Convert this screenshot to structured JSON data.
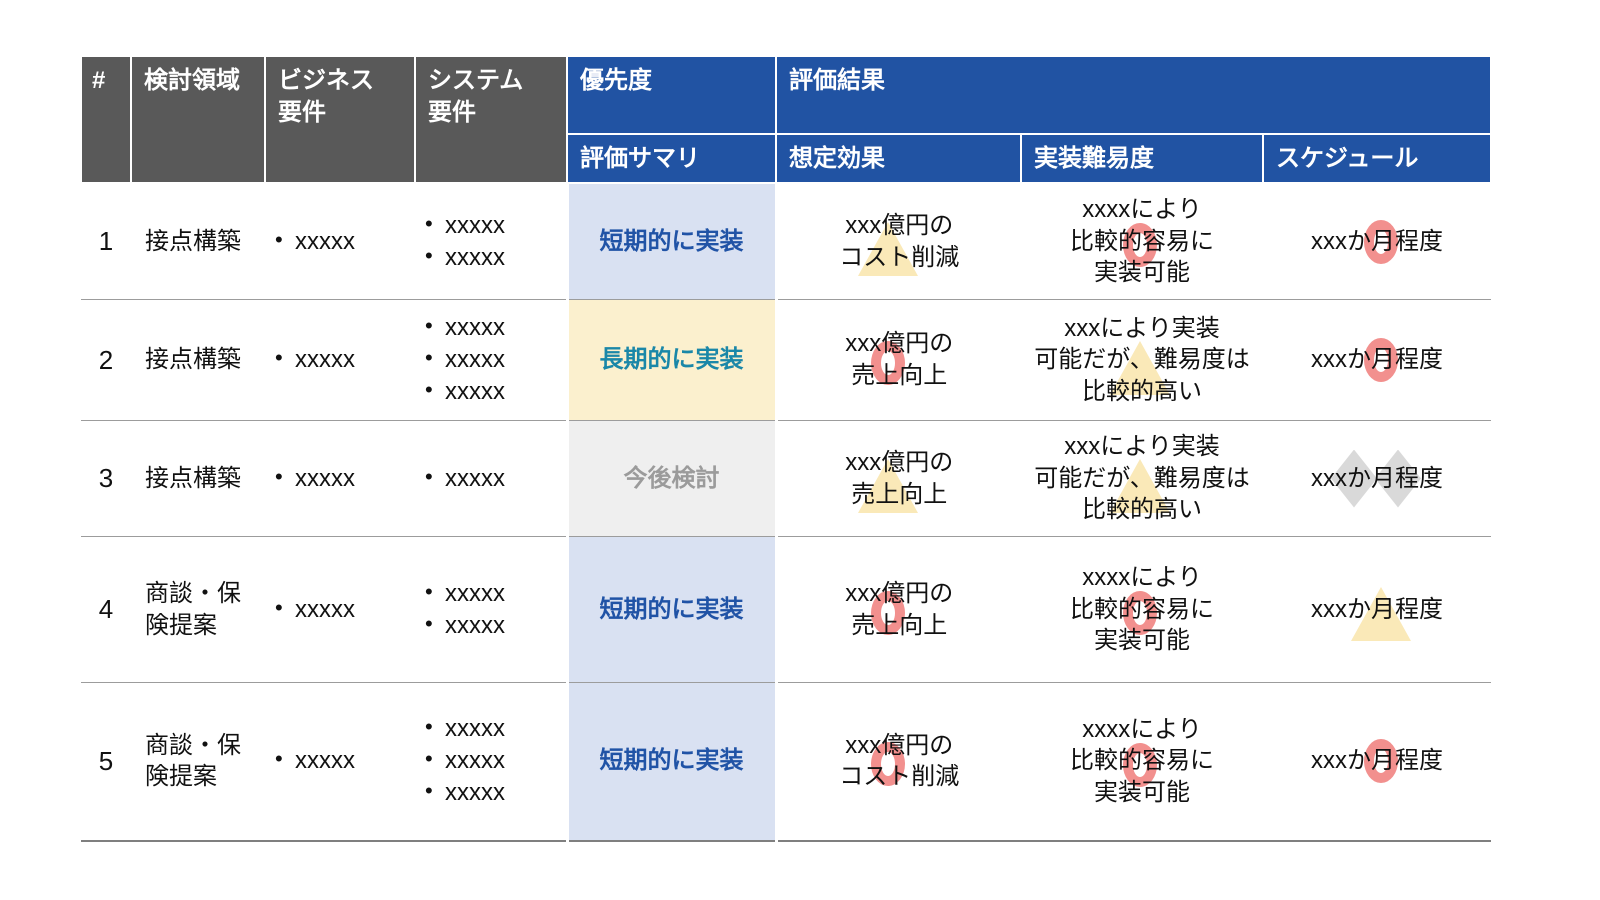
{
  "table": {
    "header": {
      "col_number": "#",
      "col_area": "検討領域",
      "col_business": "ビジネス\n要件",
      "col_system": "システム\n要件",
      "col_priority": "優先度",
      "col_priority_sub": "評価サマリ",
      "col_result": "評価結果",
      "col_effect": "想定効果",
      "col_difficulty": "実装難易度",
      "col_schedule": "スケジュール"
    },
    "rows": [
      {
        "no": "1",
        "area": "接点構築",
        "business": [
          "xxxxx"
        ],
        "system": [
          "xxxxx",
          "xxxxx"
        ],
        "priority": {
          "label": "短期的に実装",
          "type": "short"
        },
        "effect": {
          "text": "xxx億円の\nコスト削減",
          "mark": "triangle"
        },
        "difficulty": {
          "text": "xxxxにより\n比較的容易に\n実装可能",
          "mark": "circle"
        },
        "schedule": {
          "text": "xxxか月程度",
          "mark": "circle"
        }
      },
      {
        "no": "2",
        "area": "接点構築",
        "business": [
          "xxxxx"
        ],
        "system": [
          "xxxxx",
          "xxxxx",
          "xxxxx"
        ],
        "priority": {
          "label": "長期的に実装",
          "type": "long"
        },
        "effect": {
          "text": "xxx億円の\n売上向上",
          "mark": "circle"
        },
        "difficulty": {
          "text": "xxxにより実装\n可能だが、難易度は\n比較的高い",
          "mark": "triangle"
        },
        "schedule": {
          "text": "xxxか月程度",
          "mark": "circle"
        }
      },
      {
        "no": "3",
        "area": "接点構築",
        "business": [
          "xxxxx"
        ],
        "system": [
          "xxxxx"
        ],
        "priority": {
          "label": "今後検討",
          "type": "later"
        },
        "effect": {
          "text": "xxx億円の\n売上向上",
          "mark": "triangle"
        },
        "difficulty": {
          "text": "xxxにより実装\n可能だが、難易度は\n比較的高い",
          "mark": "triangle"
        },
        "schedule": {
          "text": "xxxか月程度",
          "mark": "cross"
        }
      },
      {
        "no": "4",
        "area": "商談・保険提案",
        "business": [
          "xxxxx"
        ],
        "system": [
          "xxxxx",
          "xxxxx"
        ],
        "priority": {
          "label": "短期的に実装",
          "type": "short"
        },
        "effect": {
          "text": "xxx億円の\n売上向上",
          "mark": "circle"
        },
        "difficulty": {
          "text": "xxxxにより\n比較的容易に\n実装可能",
          "mark": "circle"
        },
        "schedule": {
          "text": "xxxか月程度",
          "mark": "triangle"
        }
      },
      {
        "no": "5",
        "area": "商談・保険提案",
        "business": [
          "xxxxx"
        ],
        "system": [
          "xxxxx",
          "xxxxx",
          "xxxxx"
        ],
        "priority": {
          "label": "短期的に実装",
          "type": "short"
        },
        "effect": {
          "text": "xxx億円の\nコスト削減",
          "mark": "circle"
        },
        "difficulty": {
          "text": "xxxxにより\n比較的容易に\n実装可能",
          "mark": "circle"
        },
        "schedule": {
          "text": "xxxか月程度",
          "mark": "circle"
        }
      }
    ]
  },
  "colors": {
    "header_dark": "#595959",
    "header_blue": "#2153A3",
    "priority_short_bg": "#D9E1F2",
    "priority_short_text": "#2053A6",
    "priority_long_bg": "#FBF0CE",
    "priority_long_text": "#1A87A8",
    "priority_later_bg": "#EFEFEF",
    "priority_later_text": "#9B9B9B",
    "mark_circle": "#F2908E",
    "mark_triangle": "#FAE9B8",
    "mark_cross": "#D9D9D9",
    "row_divider": "#9C9C9C"
  }
}
